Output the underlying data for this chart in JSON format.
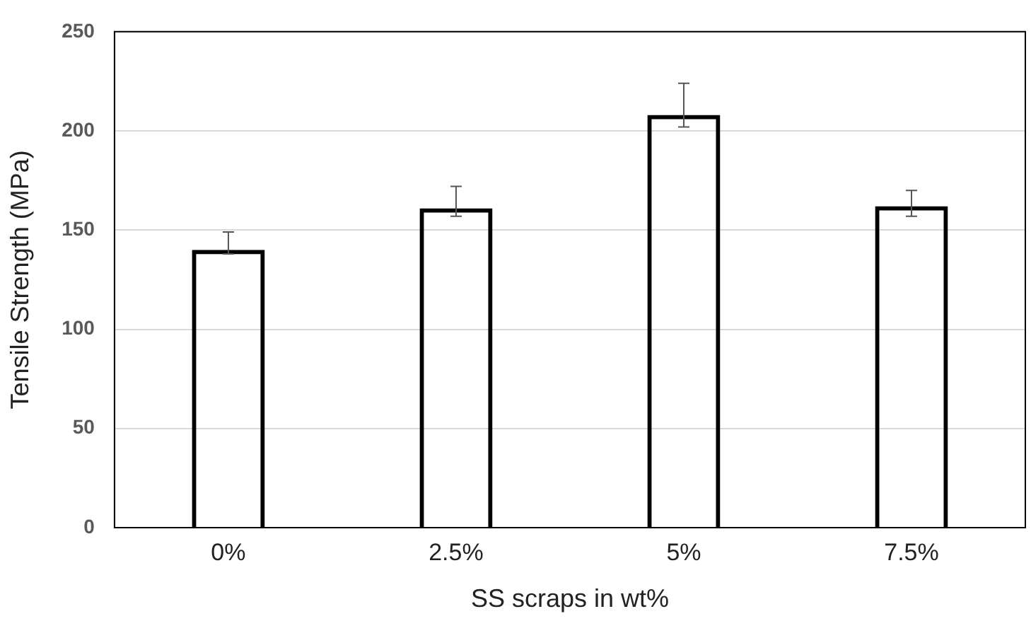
{
  "chart_data": {
    "type": "bar",
    "xlabel": "SS scraps in wt%",
    "ylabel": "Tensile Strength (MPa)",
    "categories": [
      "0%",
      "2.5%",
      "5%",
      "7.5%"
    ],
    "values": [
      140,
      161,
      208,
      162
    ],
    "errors": [
      [
        138,
        149
      ],
      [
        157,
        172
      ],
      [
        202,
        224
      ],
      [
        157,
        170
      ]
    ],
    "color": "#000000",
    "ylim": [
      0,
      250
    ],
    "yticks": [
      0,
      50,
      100,
      150,
      200,
      250
    ],
    "grid": "y"
  }
}
